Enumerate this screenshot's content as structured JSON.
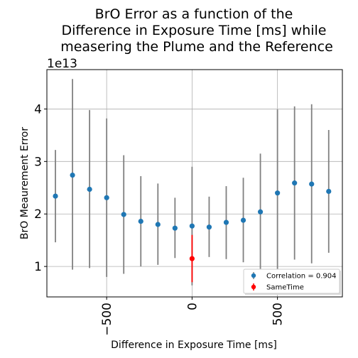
{
  "chart_data": {
    "type": "scatter",
    "title_lines": [
      "BrO Error as a function of the",
      "Difference in Exposure Time [ms] while",
      "measering the Plume and the Reference"
    ],
    "xlabel": "Difference in Exposure Time [ms]",
    "ylabel": "BrO Meaurement Error",
    "y_offset_label": "1e13",
    "xlim": [
      -850,
      880
    ],
    "ylim": [
      0.42,
      4.75
    ],
    "y_scale_note": "values in units of 1e13",
    "x_ticks": [
      -500,
      0,
      500
    ],
    "x_tick_labels": [
      "−500",
      "0",
      "500"
    ],
    "y_ticks": [
      1,
      2,
      3,
      4
    ],
    "y_tick_labels": [
      "1",
      "2",
      "3",
      "4"
    ],
    "grid": true,
    "legend_position": "lower-right",
    "series": [
      {
        "name": "Correlation = 0.904",
        "color": "#1f77b4",
        "error_color": "#808080",
        "points": [
          {
            "x": -800,
            "y": 2.34,
            "lo": 1.46,
            "hi": 3.22
          },
          {
            "x": -700,
            "y": 2.74,
            "lo": 0.94,
            "hi": 4.57
          },
          {
            "x": -600,
            "y": 2.47,
            "lo": 0.97,
            "hi": 3.98
          },
          {
            "x": -500,
            "y": 2.31,
            "lo": 0.8,
            "hi": 3.82
          },
          {
            "x": -400,
            "y": 1.99,
            "lo": 0.86,
            "hi": 3.12
          },
          {
            "x": -300,
            "y": 1.86,
            "lo": 1.0,
            "hi": 2.72
          },
          {
            "x": -200,
            "y": 1.8,
            "lo": 1.03,
            "hi": 2.58
          },
          {
            "x": -100,
            "y": 1.73,
            "lo": 1.16,
            "hi": 2.31
          },
          {
            "x": 0,
            "y": 1.77,
            "lo": 0.64,
            "hi": 2.9
          },
          {
            "x": 100,
            "y": 1.75,
            "lo": 1.18,
            "hi": 2.33
          },
          {
            "x": 200,
            "y": 1.84,
            "lo": 1.14,
            "hi": 2.53
          },
          {
            "x": 300,
            "y": 1.88,
            "lo": 1.08,
            "hi": 2.69
          },
          {
            "x": 400,
            "y": 2.04,
            "lo": 0.94,
            "hi": 3.15
          },
          {
            "x": 500,
            "y": 2.4,
            "lo": 0.8,
            "hi": 3.99
          },
          {
            "x": 600,
            "y": 2.59,
            "lo": 1.13,
            "hi": 4.05
          },
          {
            "x": 700,
            "y": 2.57,
            "lo": 1.06,
            "hi": 4.09
          },
          {
            "x": 800,
            "y": 2.43,
            "lo": 1.26,
            "hi": 3.6
          }
        ]
      },
      {
        "name": "SameTime",
        "color": "#ff0000",
        "error_color": "#ff0000",
        "points": [
          {
            "x": 0,
            "y": 1.15,
            "lo": 0.7,
            "hi": 1.6
          }
        ]
      }
    ]
  }
}
